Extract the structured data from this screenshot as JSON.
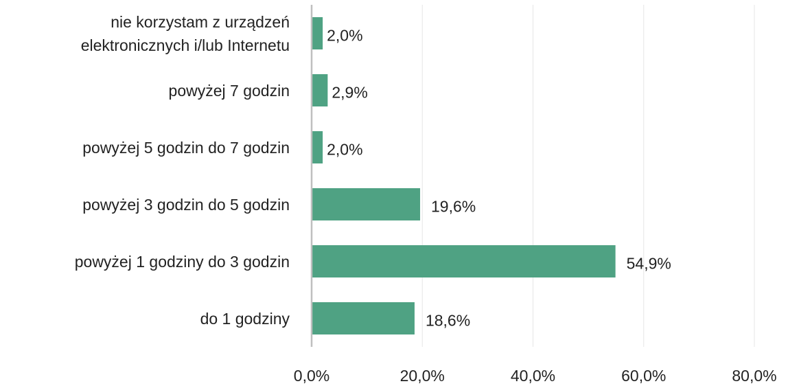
{
  "chart_data": {
    "type": "bar",
    "orientation": "horizontal",
    "categories": [
      "nie korzystam z urządzeń\nelektronicznych i/lub Internetu",
      "powyżej 7 godzin",
      "powyżej 5 godzin do 7 godzin",
      "powyżej 3 godzin do 5 godzin",
      "powyżej 1 godziny do 3 godzin",
      "do 1 godziny"
    ],
    "values": [
      2.0,
      2.9,
      2.0,
      19.6,
      54.9,
      18.6
    ],
    "value_labels": [
      "2,0%",
      "2,9%",
      "2,0%",
      "19,6%",
      "54,9%",
      "18,6%"
    ],
    "color": "#4fa283",
    "xlim": [
      0,
      80
    ],
    "xticks": [
      {
        "value": 0,
        "label": "0,0%"
      },
      {
        "value": 20,
        "label": "20,0%"
      },
      {
        "value": 40,
        "label": "40,0%"
      },
      {
        "value": 60,
        "label": "60,0%"
      },
      {
        "value": 80,
        "label": "80,0%"
      }
    ],
    "grid": true
  }
}
